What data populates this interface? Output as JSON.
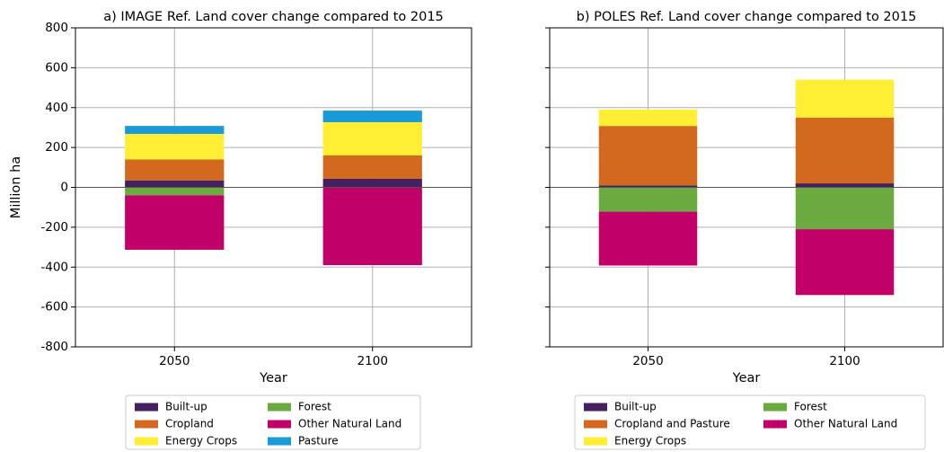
{
  "chart_data": [
    {
      "type": "bar",
      "stacked": true,
      "title": "a) IMAGE Ref. Land cover change compared to 2015",
      "x_label": "Year",
      "y_label": "Million ha",
      "categories": [
        "2050",
        "2100"
      ],
      "ylim": [
        -800,
        800
      ],
      "yticks": [
        -800,
        -600,
        -400,
        -200,
        0,
        200,
        400,
        600,
        800
      ],
      "grid": true,
      "legend": "below",
      "series": [
        {
          "name": "Built-up",
          "color": "#45205f",
          "values": [
            35,
            43
          ]
        },
        {
          "name": "Cropland",
          "color": "#d2691e",
          "values": [
            105,
            117
          ]
        },
        {
          "name": "Energy Crops",
          "color": "#ffee33",
          "values": [
            128,
            167
          ]
        },
        {
          "name": "Forest",
          "color": "#6aaa3e",
          "values": [
            -40,
            0
          ]
        },
        {
          "name": "Other Natural Land",
          "color": "#c2006a",
          "values": [
            -273,
            -390
          ]
        },
        {
          "name": "Pasture",
          "color": "#1a9ad6",
          "values": [
            40,
            58
          ]
        }
      ]
    },
    {
      "type": "bar",
      "stacked": true,
      "title": "b) POLES Ref. Land cover change compared to 2015",
      "x_label": "Year",
      "categories": [
        "2050",
        "2100"
      ],
      "ylim": [
        -800,
        800
      ],
      "yticks": [
        -800,
        -600,
        -400,
        -200,
        0,
        200,
        400,
        600,
        800
      ],
      "show_ytick_labels": false,
      "grid": true,
      "legend": "below",
      "series": [
        {
          "name": "Built-up",
          "color": "#45205f",
          "values": [
            10,
            20
          ]
        },
        {
          "name": "Cropland and Pasture",
          "color": "#d2691e",
          "values": [
            298,
            330
          ]
        },
        {
          "name": "Energy Crops",
          "color": "#ffee33",
          "values": [
            82,
            190
          ]
        },
        {
          "name": "Forest",
          "color": "#6aaa3e",
          "values": [
            -122,
            -210
          ]
        },
        {
          "name": "Other Natural Land",
          "color": "#c2006a",
          "values": [
            -270,
            -330
          ]
        }
      ]
    }
  ]
}
